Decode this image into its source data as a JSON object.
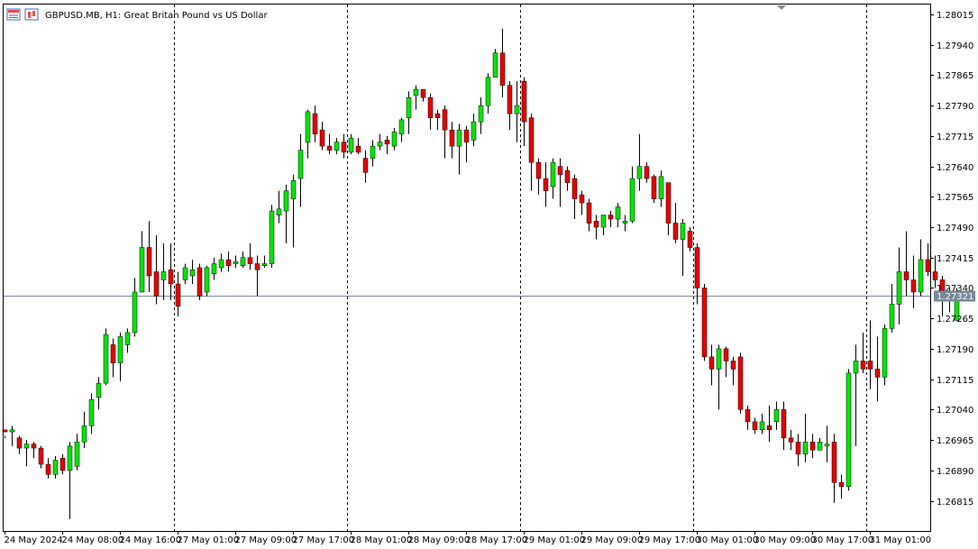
{
  "header": {
    "title": "GBPUSD.MB, H1:  Great Britan Pound vs US Dollar",
    "icons": [
      "chart-window-icon",
      "candlestick-icon"
    ]
  },
  "colors": {
    "background": "#ffffff",
    "frame": "#000000",
    "bull": "#00e600",
    "bear": "#e60000",
    "wick": "#000000",
    "separator": "#000000",
    "price_line": "#778899",
    "price_badge": "#778899",
    "price_badge_text": "#ffffff"
  },
  "chart_data": {
    "type": "candlestick",
    "symbol": "GBPUSD.MB",
    "timeframe": "H1",
    "ylim": [
      1.26755,
      1.28035
    ],
    "y_ticks": [
      "1.28015",
      "1.27940",
      "1.27865",
      "1.27790",
      "1.27715",
      "1.27640",
      "1.27565",
      "1.27490",
      "1.27415",
      "1.27340",
      "1.27265",
      "1.27190",
      "1.27115",
      "1.27040",
      "1.26965",
      "1.26890",
      "1.26815"
    ],
    "x_ticks": [
      {
        "label": "24 May 2024",
        "bar": 0
      },
      {
        "label": "24 May 08:00",
        "bar": 8
      },
      {
        "label": "24 May 16:00",
        "bar": 16
      },
      {
        "label": "27 May 01:00",
        "bar": 24
      },
      {
        "label": "27 May 09:00",
        "bar": 32
      },
      {
        "label": "27 May 17:00",
        "bar": 40
      },
      {
        "label": "28 May 01:00",
        "bar": 48
      },
      {
        "label": "28 May 09:00",
        "bar": 56
      },
      {
        "label": "28 May 17:00",
        "bar": 64
      },
      {
        "label": "29 May 01:00",
        "bar": 72
      },
      {
        "label": "29 May 09:00",
        "bar": 80
      },
      {
        "label": "29 May 17:00",
        "bar": 88
      },
      {
        "label": "30 May 01:00",
        "bar": 96
      },
      {
        "label": "30 May 09:00",
        "bar": 104
      },
      {
        "label": "30 May 17:00",
        "bar": 112
      },
      {
        "label": "31 May 01:00",
        "bar": 120
      }
    ],
    "day_separators_bar": [
      23,
      47,
      71,
      95,
      119
    ],
    "current_price": "1.27321",
    "candles": [
      [
        1.2699,
        1.26985,
        1.26975,
        1.2697
      ],
      [
        1.26985,
        1.2699,
        1.27,
        1.2695
      ],
      [
        1.2697,
        1.26945,
        1.26975,
        1.2693
      ],
      [
        1.26945,
        1.26955,
        1.26965,
        1.269
      ],
      [
        1.26955,
        1.26945,
        1.2696,
        1.2692
      ],
      [
        1.26945,
        1.26905,
        1.2695,
        1.26895
      ],
      [
        1.26905,
        1.2688,
        1.2692,
        1.2687
      ],
      [
        1.2688,
        1.26915,
        1.26925,
        1.2687
      ],
      [
        1.2692,
        1.2689,
        1.2693,
        1.2688
      ],
      [
        1.2689,
        1.2695,
        1.2696,
        1.2677
      ],
      [
        1.269,
        1.2696,
        1.2698,
        1.2689
      ],
      [
        1.2696,
        1.27,
        1.27035,
        1.26945
      ],
      [
        1.27,
        1.27065,
        1.2708,
        1.2698
      ],
      [
        1.2707,
        1.27105,
        1.2712,
        1.2704
      ],
      [
        1.27105,
        1.27225,
        1.2724,
        1.271
      ],
      [
        1.272,
        1.27155,
        1.27215,
        1.2712
      ],
      [
        1.27155,
        1.2722,
        1.2723,
        1.2711
      ],
      [
        1.272,
        1.2723,
        1.2724,
        1.2718
      ],
      [
        1.2723,
        1.2733,
        1.27365,
        1.2722
      ],
      [
        1.2733,
        1.2744,
        1.2748,
        1.2733
      ],
      [
        1.2744,
        1.2737,
        1.27505,
        1.2733
      ],
      [
        1.2738,
        1.2732,
        1.2747,
        1.273
      ],
      [
        1.2736,
        1.2738,
        1.2745,
        1.2731
      ],
      [
        1.27385,
        1.2735,
        1.2745,
        1.2731
      ],
      [
        1.2735,
        1.27295,
        1.2738,
        1.2727
      ],
      [
        1.2736,
        1.2739,
        1.274,
        1.2735
      ],
      [
        1.2737,
        1.27385,
        1.2741,
        1.2735
      ],
      [
        1.2739,
        1.2732,
        1.274,
        1.2731
      ],
      [
        1.2733,
        1.2739,
        1.27395,
        1.2732
      ],
      [
        1.27375,
        1.274,
        1.27415,
        1.2736
      ],
      [
        1.2739,
        1.2741,
        1.27425,
        1.2738
      ],
      [
        1.2741,
        1.27395,
        1.2743,
        1.2738
      ],
      [
        1.274,
        1.27405,
        1.2742,
        1.2739
      ],
      [
        1.27395,
        1.27415,
        1.2743,
        1.2739
      ],
      [
        1.27415,
        1.274,
        1.2745,
        1.27385
      ],
      [
        1.274,
        1.27385,
        1.2742,
        1.2732
      ],
      [
        1.27395,
        1.274,
        1.2742,
        1.2739
      ],
      [
        1.274,
        1.2753,
        1.27545,
        1.2739
      ],
      [
        1.2752,
        1.27535,
        1.2758,
        1.275
      ],
      [
        1.2753,
        1.2758,
        1.27595,
        1.2745
      ],
      [
        1.2756,
        1.27605,
        1.2762,
        1.2744
      ],
      [
        1.2761,
        1.2768,
        1.2772,
        1.2754
      ],
      [
        1.277,
        1.27775,
        1.2778,
        1.2766
      ],
      [
        1.2777,
        1.2772,
        1.2779,
        1.277
      ],
      [
        1.2773,
        1.2769,
        1.2775,
        1.2768
      ],
      [
        1.2769,
        1.2768,
        1.2772,
        1.2767
      ],
      [
        1.2768,
        1.277,
        1.2771,
        1.2767
      ],
      [
        1.277,
        1.27675,
        1.2772,
        1.2766
      ],
      [
        1.27675,
        1.2771,
        1.2772,
        1.2767
      ],
      [
        1.2769,
        1.27675,
        1.2771,
        1.2767
      ],
      [
        1.2766,
        1.27625,
        1.2768,
        1.276
      ],
      [
        1.2766,
        1.2769,
        1.27705,
        1.2764
      ],
      [
        1.2769,
        1.277,
        1.2772,
        1.2768
      ],
      [
        1.27705,
        1.27695,
        1.27715,
        1.2767
      ],
      [
        1.2769,
        1.27725,
        1.27735,
        1.2768
      ],
      [
        1.2772,
        1.27755,
        1.2776,
        1.277
      ],
      [
        1.2776,
        1.2781,
        1.27825,
        1.2772
      ],
      [
        1.27815,
        1.2783,
        1.2784,
        1.2778
      ],
      [
        1.2783,
        1.2781,
        1.2783,
        1.278
      ],
      [
        1.2781,
        1.2776,
        1.2782,
        1.2773
      ],
      [
        1.2777,
        1.2776,
        1.2778,
        1.2773
      ],
      [
        1.2778,
        1.2773,
        1.2779,
        1.2766
      ],
      [
        1.2773,
        1.2769,
        1.2775,
        1.2766
      ],
      [
        1.2769,
        1.2773,
        1.27745,
        1.2762
      ],
      [
        1.2773,
        1.277,
        1.2774,
        1.2765
      ],
      [
        1.27705,
        1.2775,
        1.2777,
        1.2769
      ],
      [
        1.2775,
        1.2779,
        1.2781,
        1.2772
      ],
      [
        1.2779,
        1.2786,
        1.2787,
        1.2777
      ],
      [
        1.2786,
        1.2792,
        1.2793,
        1.2786
      ],
      [
        1.2792,
        1.2784,
        1.2798,
        1.2781
      ],
      [
        1.2784,
        1.2777,
        1.2785,
        1.2773
      ],
      [
        1.2777,
        1.2779,
        1.2785,
        1.277
      ],
      [
        1.2785,
        1.2775,
        1.2786,
        1.2769
      ],
      [
        1.2776,
        1.2765,
        1.2777,
        1.2758
      ],
      [
        1.2765,
        1.2761,
        1.2766,
        1.2757
      ],
      [
        1.2761,
        1.2758,
        1.2765,
        1.2754
      ],
      [
        1.2759,
        1.2765,
        1.2766,
        1.2756
      ],
      [
        1.2764,
        1.2762,
        1.2766,
        1.2754
      ],
      [
        1.2763,
        1.276,
        1.2764,
        1.2758
      ],
      [
        1.2761,
        1.2756,
        1.2762,
        1.2751
      ],
      [
        1.2757,
        1.2755,
        1.2758,
        1.2752
      ],
      [
        1.2755,
        1.275,
        1.2756,
        1.2748
      ],
      [
        1.27505,
        1.2749,
        1.2752,
        1.2746
      ],
      [
        1.2749,
        1.2752,
        1.2752,
        1.2747
      ],
      [
        1.2752,
        1.2751,
        1.2753,
        1.2749
      ],
      [
        1.2751,
        1.2754,
        1.2755,
        1.2749
      ],
      [
        1.275,
        1.27505,
        1.2752,
        1.2748
      ],
      [
        1.27505,
        1.2761,
        1.2764,
        1.275
      ],
      [
        1.2761,
        1.2764,
        1.2772,
        1.2758
      ],
      [
        1.2764,
        1.2761,
        1.2765,
        1.276
      ],
      [
        1.27615,
        1.2756,
        1.2762,
        1.2755
      ],
      [
        1.2756,
        1.27615,
        1.2763,
        1.2754
      ],
      [
        1.276,
        1.275,
        1.276,
        1.2747
      ],
      [
        1.275,
        1.2746,
        1.2755,
        1.2745
      ],
      [
        1.2746,
        1.275,
        1.2751,
        1.2737
      ],
      [
        1.2748,
        1.2744,
        1.2749,
        1.2743
      ],
      [
        1.2744,
        1.2734,
        1.2745,
        1.273
      ],
      [
        1.2734,
        1.2717,
        1.2735,
        1.2716
      ],
      [
        1.2717,
        1.2714,
        1.272,
        1.271
      ],
      [
        1.2714,
        1.2719,
        1.272,
        1.2704
      ],
      [
        1.2719,
        1.2716,
        1.27195,
        1.2712
      ],
      [
        1.2716,
        1.2714,
        1.2717,
        1.271
      ],
      [
        1.2717,
        1.2704,
        1.2718,
        1.2703
      ],
      [
        1.2704,
        1.2701,
        1.2705,
        1.2699
      ],
      [
        1.2701,
        1.2699,
        1.2702,
        1.2698
      ],
      [
        1.2699,
        1.2701,
        1.2703,
        1.2698
      ],
      [
        1.27,
        1.2699,
        1.2705,
        1.2696
      ],
      [
        1.2701,
        1.2704,
        1.2706,
        1.2699
      ],
      [
        1.2704,
        1.2697,
        1.2706,
        1.2694
      ],
      [
        1.2697,
        1.2696,
        1.2699,
        1.2694
      ],
      [
        1.2696,
        1.2693,
        1.2698,
        1.269
      ],
      [
        1.2693,
        1.2696,
        1.2703,
        1.2691
      ],
      [
        1.2696,
        1.2694,
        1.2698,
        1.2692
      ],
      [
        1.2694,
        1.2696,
        1.2697,
        1.2694
      ],
      [
        1.2695,
        1.26955,
        1.27,
        1.2691
      ],
      [
        1.2696,
        1.2686,
        1.2698,
        1.2681
      ],
      [
        1.2686,
        1.2685,
        1.2688,
        1.2682
      ],
      [
        1.2685,
        1.2713,
        1.2714,
        1.2684
      ],
      [
        1.2713,
        1.2716,
        1.272,
        1.2695
      ],
      [
        1.2716,
        1.2714,
        1.2723,
        1.2713
      ],
      [
        1.2716,
        1.2714,
        1.2726,
        1.2709
      ],
      [
        1.2714,
        1.2712,
        1.2722,
        1.2706
      ],
      [
        1.2712,
        1.2724,
        1.2725,
        1.271
      ],
      [
        1.2724,
        1.273,
        1.2735,
        1.2723
      ],
      [
        1.273,
        1.2738,
        1.2744,
        1.2725
      ],
      [
        1.2738,
        1.2736,
        1.2748,
        1.2732
      ],
      [
        1.2736,
        1.2733,
        1.2742,
        1.2729
      ],
      [
        1.2733,
        1.2741,
        1.2746,
        1.2732
      ],
      [
        1.2741,
        1.2738,
        1.2745,
        1.2737
      ],
      [
        1.2738,
        1.2736,
        1.2742,
        1.2734
      ],
      [
        1.2736,
        1.2733,
        1.2737,
        1.2727
      ],
      [
        1.2732,
        1.2732,
        1.2734,
        1.2728
      ],
      [
        1.2726,
        1.2732,
        1.2734,
        1.2726
      ]
    ]
  }
}
